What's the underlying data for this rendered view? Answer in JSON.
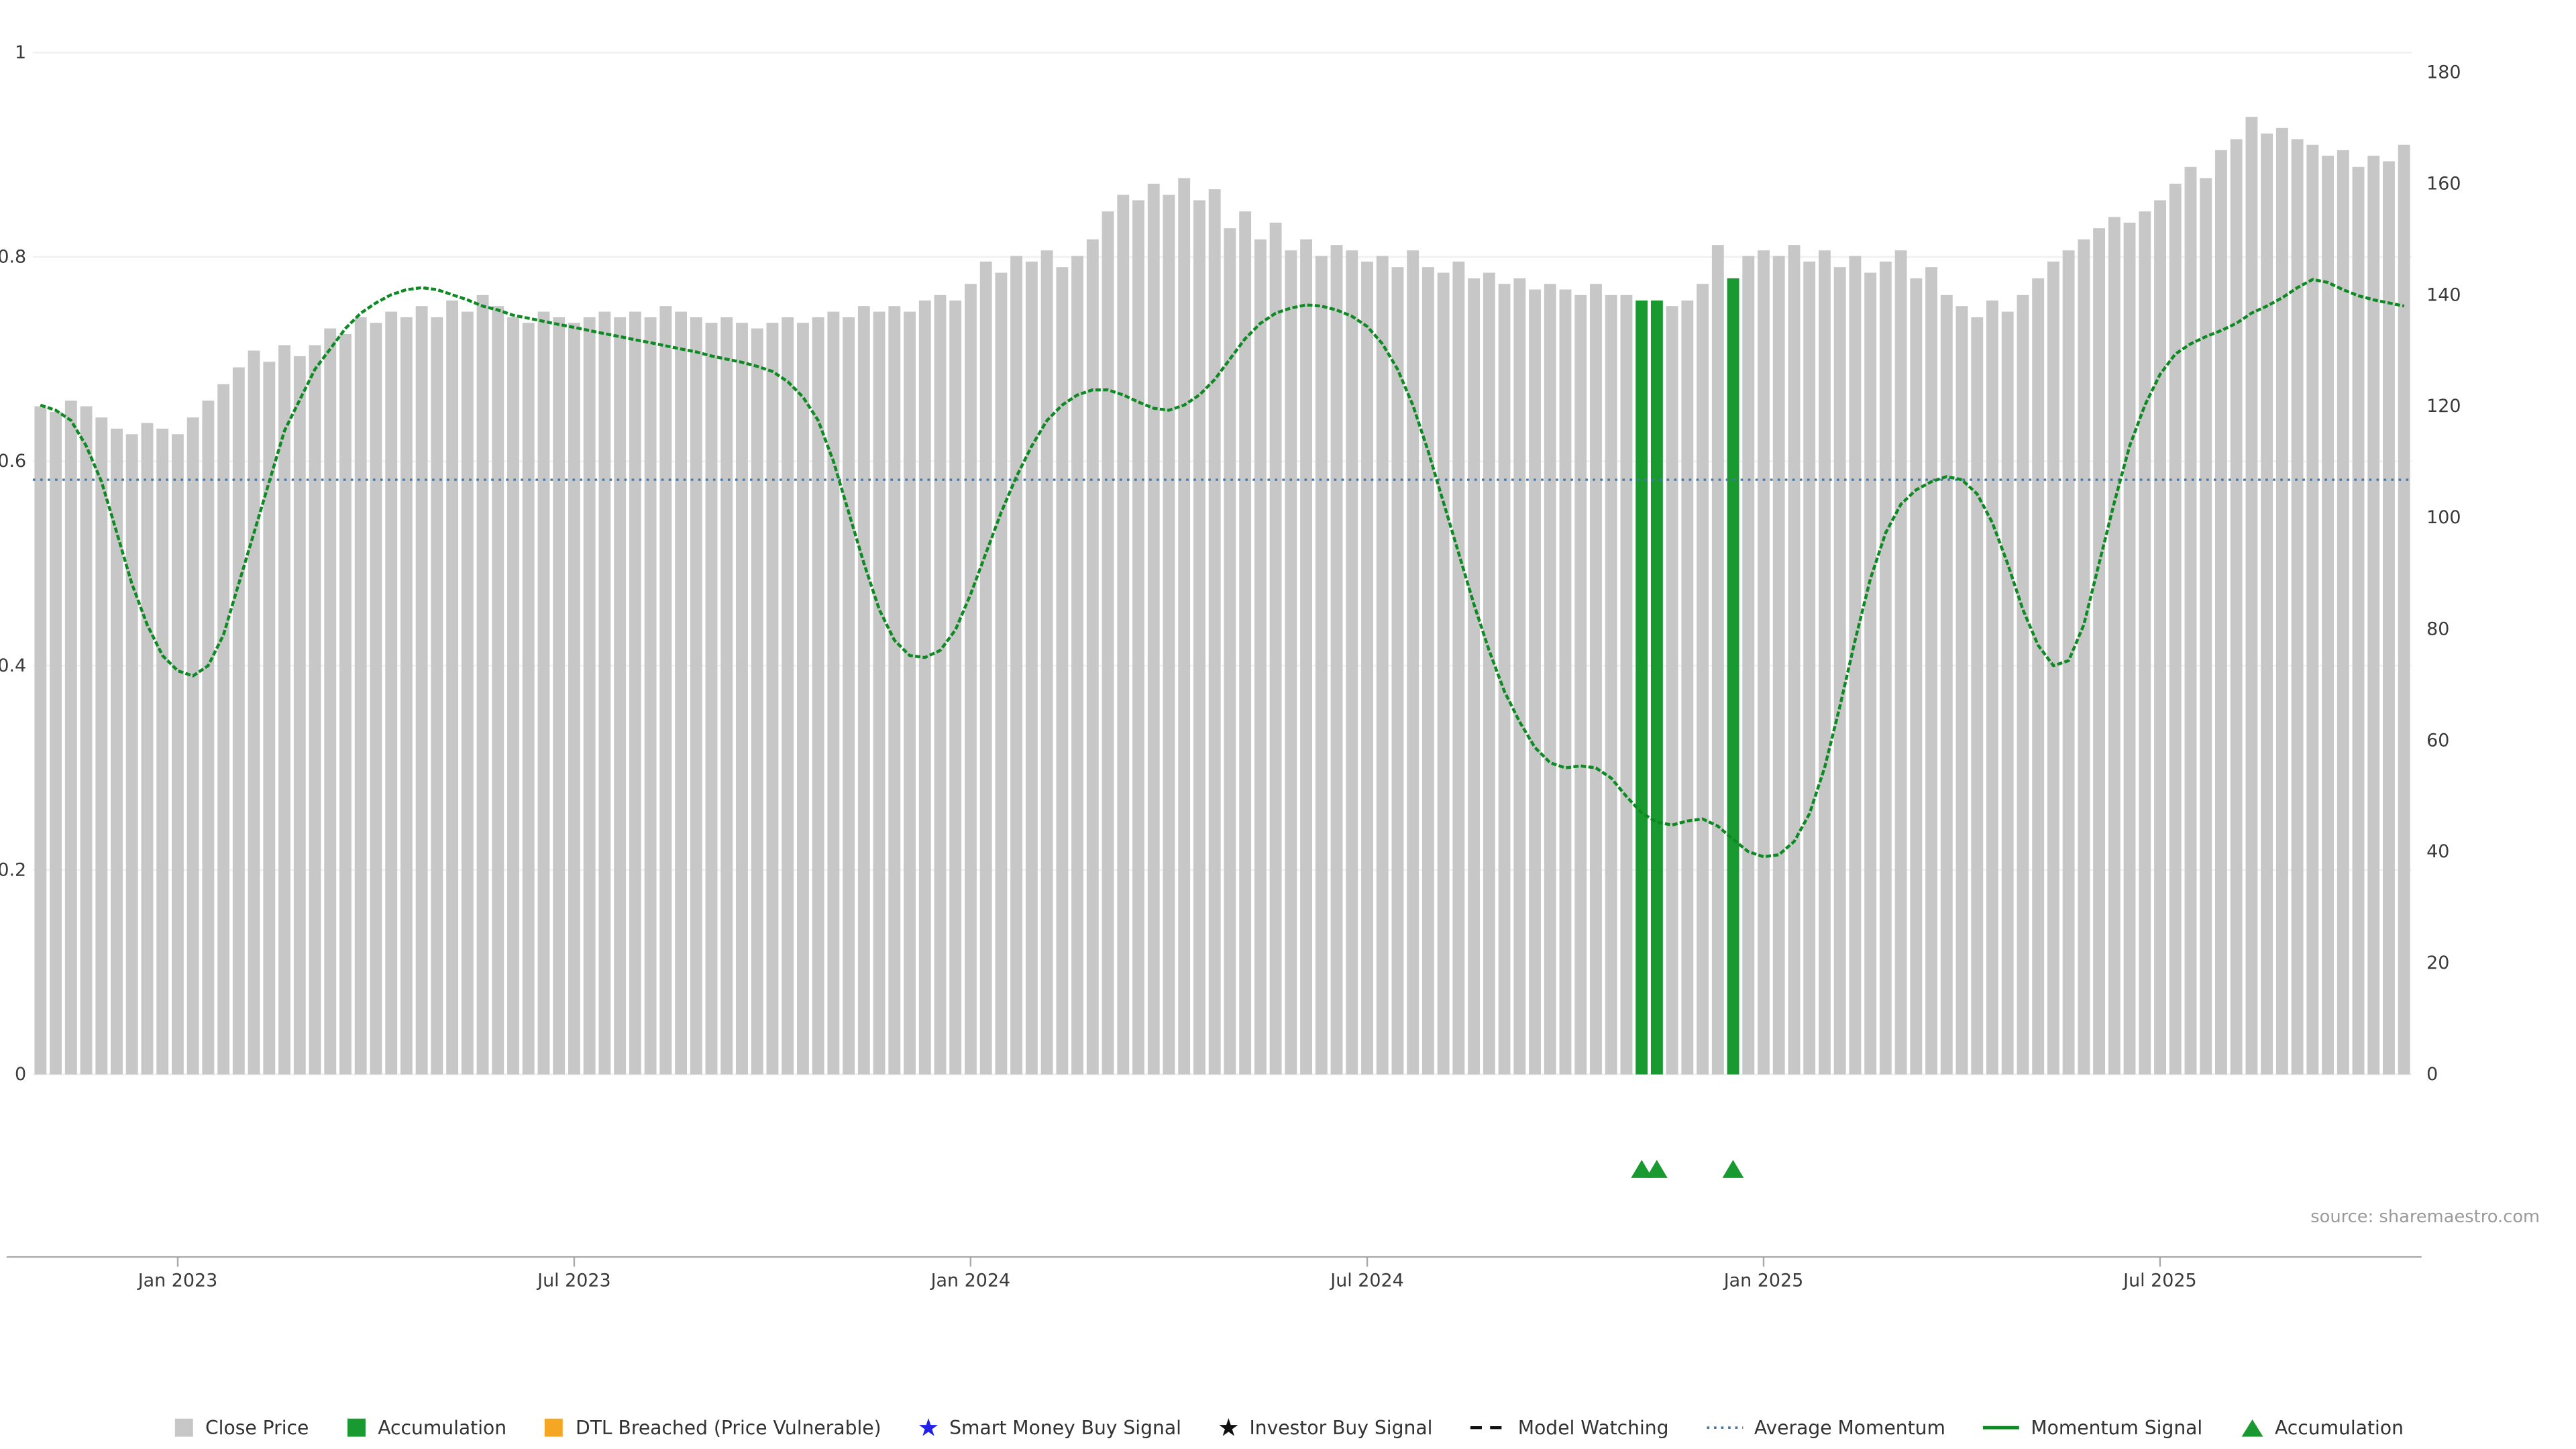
{
  "source_note": "source: sharemaestro.com",
  "colors": {
    "bar_gray": "#c7c7c7",
    "accumulation_green": "#189a31",
    "momentum_green": "#0e8a22",
    "average_blue": "#4477aa",
    "dtl_orange": "#f5a623",
    "smart_money_blue": "#2222e6",
    "investor_black": "#111111",
    "axis_line": "#aaaaaa"
  },
  "legend": [
    {
      "label": "Close Price",
      "type": "square",
      "color": "#c7c7c7",
      "icon": "gray-square-icon"
    },
    {
      "label": "Accumulation",
      "type": "square",
      "color": "#189a31",
      "icon": "green-square-icon"
    },
    {
      "label": "DTL Breached (Price Vulnerable)",
      "type": "square",
      "color": "#f5a623",
      "icon": "orange-square-icon"
    },
    {
      "label": "Smart Money Buy Signal",
      "type": "star",
      "color": "#2222e6",
      "icon": "blue-star-icon"
    },
    {
      "label": "Investor Buy Signal",
      "type": "star",
      "color": "#111111",
      "icon": "black-star-icon"
    },
    {
      "label": "Model Watching",
      "type": "dashed-line",
      "color": "#111111",
      "icon": "dashed-line-icon"
    },
    {
      "label": "Average Momentum",
      "type": "dotted-line",
      "color": "#4477aa",
      "icon": "dotted-line-icon"
    },
    {
      "label": "Momentum Signal",
      "type": "line",
      "color": "#0e8a22",
      "icon": "green-line-icon"
    },
    {
      "label": "Accumulation",
      "type": "triangle",
      "color": "#189a31",
      "icon": "green-triangle-icon"
    }
  ],
  "chart_data": {
    "type": "bar+line combo, weekly",
    "left_axis": {
      "range": [
        0,
        1
      ],
      "tick_values": [
        0,
        0.2,
        0.4,
        0.6,
        0.8,
        1
      ],
      "ticks": [
        "0",
        "0.2",
        "0.4",
        "0.6",
        "0.8",
        "1"
      ]
    },
    "right_axis": {
      "range": [
        0,
        180
      ],
      "ticks": [
        0,
        20,
        40,
        60,
        80,
        100,
        120,
        140,
        160,
        180
      ]
    },
    "x": {
      "tick_labels": [
        {
          "index": 9,
          "label": "Jan 2023"
        },
        {
          "index": 35,
          "label": "Jul 2023"
        },
        {
          "index": 61,
          "label": "Jan 2024"
        },
        {
          "index": 87,
          "label": "Jul 2024"
        },
        {
          "index": 113,
          "label": "Jan 2025"
        },
        {
          "index": 139,
          "label": "Jul 2025"
        }
      ]
    },
    "average_momentum": {
      "value": 0.582,
      "style": "dotted",
      "color": "#4477aa"
    },
    "accumulation": {
      "indices": [
        105,
        106,
        111
      ],
      "bar_color": "#189a31",
      "marker": "triangle-up"
    },
    "series": [
      {
        "name": "Close Price",
        "type": "bar",
        "axis": "right",
        "color": "#c7c7c7",
        "values": [
          120,
          119,
          121,
          120,
          118,
          116,
          115,
          117,
          116,
          115,
          118,
          121,
          124,
          127,
          130,
          128,
          131,
          129,
          131,
          134,
          133,
          136,
          135,
          137,
          136,
          138,
          136,
          139,
          137,
          140,
          138,
          136,
          135,
          137,
          136,
          135,
          136,
          137,
          136,
          137,
          136,
          138,
          137,
          136,
          135,
          136,
          135,
          134,
          135,
          136,
          135,
          136,
          137,
          136,
          138,
          137,
          138,
          137,
          139,
          140,
          139,
          142,
          146,
          144,
          147,
          146,
          148,
          145,
          147,
          150,
          155,
          158,
          157,
          160,
          158,
          161,
          157,
          159,
          152,
          155,
          150,
          153,
          148,
          150,
          147,
          149,
          148,
          146,
          147,
          145,
          148,
          145,
          144,
          146,
          143,
          144,
          142,
          143,
          141,
          142,
          141,
          140,
          142,
          140,
          140,
          139,
          139,
          138,
          139,
          142,
          149,
          143,
          147,
          148,
          147,
          149,
          146,
          148,
          145,
          147,
          144,
          146,
          148,
          143,
          145,
          140,
          138,
          136,
          139,
          137,
          140,
          143,
          146,
          148,
          150,
          152,
          154,
          153,
          155,
          157,
          160,
          163,
          161,
          166,
          168,
          172,
          169,
          170,
          168,
          167,
          165,
          166,
          163,
          165,
          164,
          167
        ]
      },
      {
        "name": "Momentum Signal",
        "type": "line",
        "axis": "left",
        "color": "#0e8a22",
        "values": [
          0.655,
          0.65,
          0.64,
          0.615,
          0.58,
          0.53,
          0.48,
          0.44,
          0.41,
          0.395,
          0.39,
          0.4,
          0.43,
          0.48,
          0.53,
          0.58,
          0.63,
          0.66,
          0.69,
          0.71,
          0.73,
          0.745,
          0.755,
          0.763,
          0.768,
          0.77,
          0.768,
          0.763,
          0.758,
          0.752,
          0.748,
          0.743,
          0.74,
          0.737,
          0.734,
          0.731,
          0.728,
          0.725,
          0.722,
          0.719,
          0.716,
          0.713,
          0.71,
          0.707,
          0.703,
          0.7,
          0.697,
          0.693,
          0.688,
          0.678,
          0.663,
          0.64,
          0.6,
          0.55,
          0.5,
          0.455,
          0.425,
          0.41,
          0.408,
          0.415,
          0.435,
          0.47,
          0.51,
          0.55,
          0.585,
          0.615,
          0.64,
          0.655,
          0.665,
          0.67,
          0.67,
          0.665,
          0.658,
          0.652,
          0.65,
          0.655,
          0.665,
          0.68,
          0.7,
          0.72,
          0.735,
          0.745,
          0.75,
          0.753,
          0.752,
          0.748,
          0.742,
          0.732,
          0.715,
          0.69,
          0.655,
          0.61,
          0.56,
          0.51,
          0.46,
          0.415,
          0.375,
          0.345,
          0.32,
          0.305,
          0.3,
          0.302,
          0.3,
          0.29,
          0.272,
          0.256,
          0.247,
          0.244,
          0.248,
          0.25,
          0.243,
          0.23,
          0.218,
          0.213,
          0.215,
          0.228,
          0.255,
          0.3,
          0.36,
          0.425,
          0.485,
          0.53,
          0.558,
          0.572,
          0.58,
          0.585,
          0.582,
          0.568,
          0.54,
          0.5,
          0.455,
          0.42,
          0.4,
          0.405,
          0.44,
          0.5,
          0.56,
          0.615,
          0.655,
          0.685,
          0.705,
          0.715,
          0.722,
          0.728,
          0.735,
          0.745,
          0.752,
          0.76,
          0.77,
          0.778,
          0.775,
          0.768,
          0.762,
          0.758,
          0.755,
          0.752
        ]
      }
    ]
  }
}
